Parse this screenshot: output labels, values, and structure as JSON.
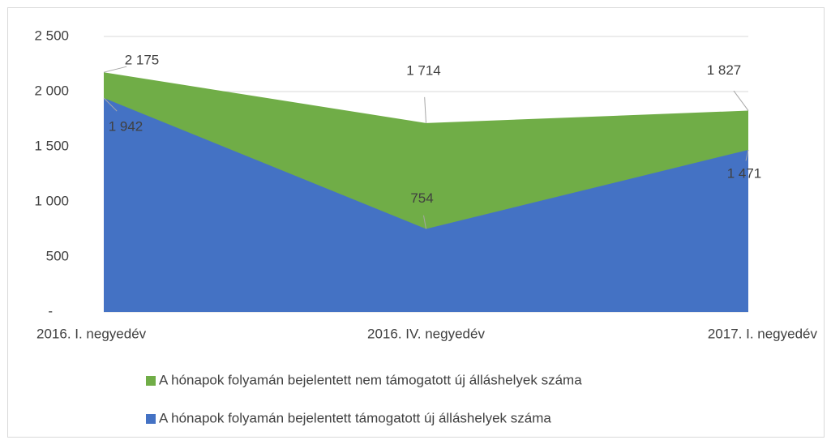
{
  "chart_data": {
    "type": "area",
    "categories": [
      "2016. I. negyedév",
      "2016. IV. negyedév",
      "2017. I. negyedév"
    ],
    "series": [
      {
        "name": "A hónapok folyamán bejelentett nem támogatott új álláshelyek száma",
        "color": "#70ad47",
        "values": [
          2175,
          1714,
          1827
        ],
        "value_labels": [
          "2 175",
          "1 714",
          "1 827"
        ]
      },
      {
        "name": "A hónapok folyamán bejelentett támogatott új álláshelyek száma",
        "color": "#4472c4",
        "values": [
          1942,
          754,
          1471
        ],
        "value_labels": [
          "1 942",
          "754",
          "1 471"
        ]
      }
    ],
    "ylim": [
      0,
      2500
    ],
    "yticks": [
      {
        "value": 0,
        "label": "-"
      },
      500,
      {
        "value": 1000,
        "label": "1 000"
      },
      {
        "value": 1500,
        "label": "1 500"
      },
      {
        "value": 2000,
        "label": "2 000"
      },
      {
        "value": 2500,
        "label": "2 500"
      }
    ],
    "grid": true
  }
}
